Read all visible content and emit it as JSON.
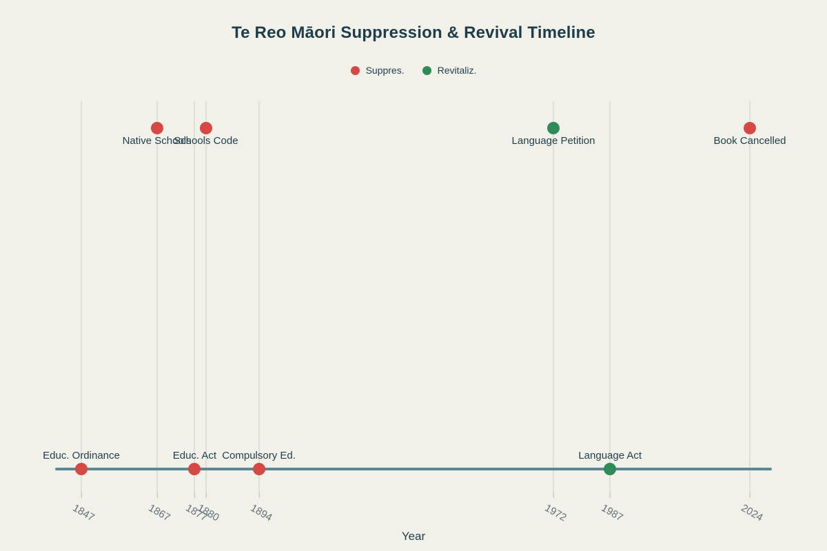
{
  "title": "Te Reo Māori Suppression & Revival Timeline",
  "xlabel": "Year",
  "colors": {
    "background": "#f1f0e9",
    "suppression": "#d64843",
    "revitalization": "#2e8b57",
    "timeline_line": "#5d8794",
    "gridline": "#dedfd6",
    "text_dark": "#1d3d4a",
    "tick_text": "#61707a"
  },
  "legend": {
    "items": [
      {
        "label": "Suppres.",
        "series": "suppression"
      },
      {
        "label": "Revitaliz.",
        "series": "revitalization"
      }
    ]
  },
  "chart_data": {
    "type": "scatter",
    "title": "Te Reo Māori Suppression & Revival Timeline",
    "xlabel": "Year",
    "ylabel": "",
    "grid": "vertical-only",
    "legend_position": "top-center",
    "x_ticks": [
      1847,
      1867,
      1877,
      1880,
      1894,
      1972,
      1987,
      2024
    ],
    "x_tick_rotation_deg": 30,
    "baseline_row": "bottom",
    "series": [
      {
        "name": "Suppres.",
        "color": "#d64843",
        "points": [
          {
            "year": 1847,
            "label": "Educ. Ordinance",
            "row": "bottom"
          },
          {
            "year": 1867,
            "label": "Native Schools",
            "row": "top"
          },
          {
            "year": 1877,
            "label": "Educ. Act",
            "row": "bottom"
          },
          {
            "year": 1880,
            "label": "Schools Code",
            "row": "top"
          },
          {
            "year": 1894,
            "label": "Compulsory Ed.",
            "row": "bottom"
          },
          {
            "year": 2024,
            "label": "Book Cancelled",
            "row": "top"
          }
        ]
      },
      {
        "name": "Revitaliz.",
        "color": "#2e8b57",
        "points": [
          {
            "year": 1972,
            "label": "Language Petition",
            "row": "top"
          },
          {
            "year": 1987,
            "label": "Language Act",
            "row": "bottom"
          }
        ]
      }
    ]
  }
}
